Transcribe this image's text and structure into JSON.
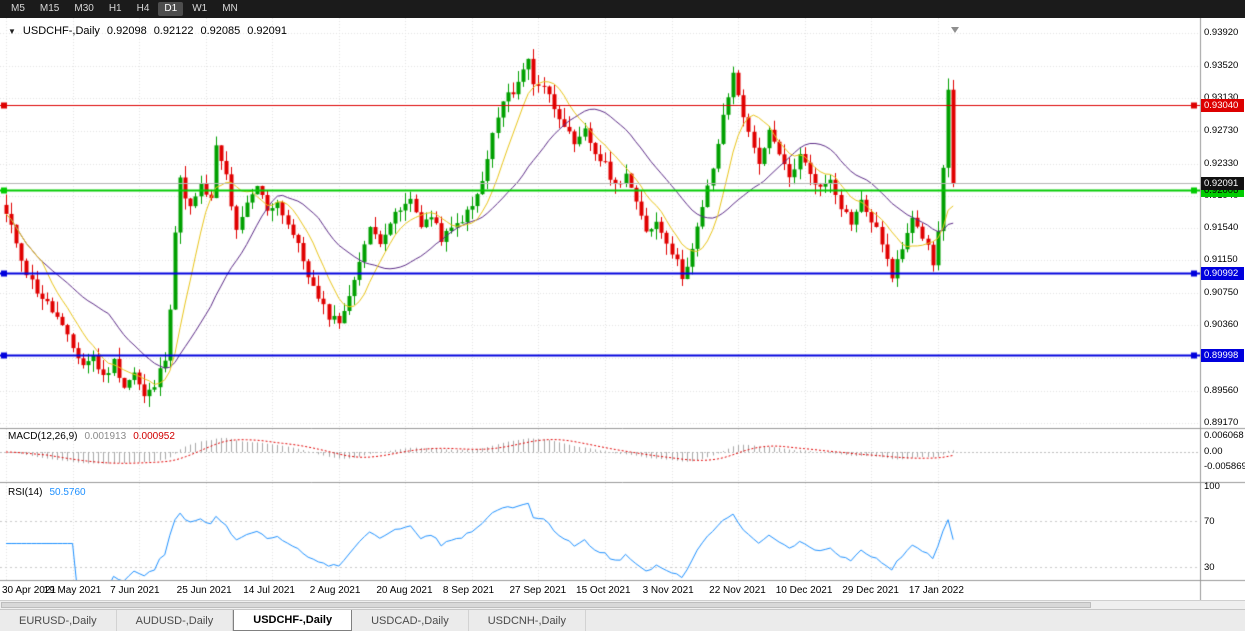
{
  "toolbar": {
    "timeframes": [
      "M5",
      "M15",
      "M30",
      "H1",
      "H4",
      "D1",
      "W1",
      "MN"
    ],
    "active": "D1"
  },
  "header": {
    "collapse_icon": "▼",
    "symbol_period": "USDCHF-,Daily",
    "open": "0.92098",
    "high": "0.92122",
    "low": "0.92085",
    "close": "0.92091"
  },
  "price_axis": {
    "ticks": [
      "0.93920",
      "0.93520",
      "0.93130",
      "0.92730",
      "0.92330",
      "0.91940",
      "0.91540",
      "0.91150",
      "0.90750",
      "0.90360",
      "0.89960",
      "0.89560",
      "0.89170"
    ]
  },
  "levels": [
    {
      "name": "resistance",
      "value": 0.9304,
      "label": "0.93040",
      "color": "#dd0000",
      "text_color": "#ffffff",
      "line_width": 1
    },
    {
      "name": "pivot",
      "value": 0.92006,
      "label": "0.92006",
      "color": "#00cc00",
      "text_color": "#000000",
      "line_width": 2
    },
    {
      "name": "support-1",
      "value": 0.90992,
      "label": "0.90992",
      "color": "#0000dd",
      "text_color": "#ffffff",
      "line_width": 2
    },
    {
      "name": "support-2",
      "value": 0.89998,
      "label": "0.89998",
      "color": "#0000dd",
      "text_color": "#ffffff",
      "line_width": 2
    }
  ],
  "current_price": {
    "value": 0.92091,
    "label": "0.92091",
    "badge_color": "#111111",
    "text_color": "#ffffff"
  },
  "macd": {
    "label": "MACD(12,26,9)",
    "main_value": "0.001913",
    "signal_value": "0.000952",
    "axis_ticks": [
      {
        "v": 0.006068,
        "label": "0.006068"
      },
      {
        "v": 0,
        "label": "0.00"
      },
      {
        "v": -0.005869,
        "label": "-0.005869"
      }
    ]
  },
  "rsi": {
    "label": "RSI(14)",
    "value": "50.5760",
    "axis_ticks": [
      {
        "v": 100,
        "label": "100"
      },
      {
        "v": 70,
        "label": "70"
      },
      {
        "v": 30,
        "label": "30"
      }
    ],
    "levels": [
      70,
      30
    ]
  },
  "date_axis": {
    "labels": [
      "30 Apr 2021",
      "19 May 2021",
      "7 Jun 2021",
      "25 Jun 2021",
      "14 Jul 2021",
      "2 Aug 2021",
      "20 Aug 2021",
      "8 Sep 2021",
      "27 Sep 2021",
      "15 Oct 2021",
      "3 Nov 2021",
      "22 Nov 2021",
      "10 Dec 2021",
      "29 Dec 2021",
      "17 Jan 2022"
    ],
    "candles_per_label": 13
  },
  "tabs": {
    "items": [
      "EURUSD-,Daily",
      "AUDUSD-,Daily",
      "USDCHF-,Daily",
      "USDCAD-,Daily",
      "USDCNH-,Daily"
    ],
    "active_index": 2
  },
  "chart_data": {
    "type": "candlestick",
    "symbol": "USDCHF",
    "timeframe": "Daily",
    "candle_count": 186,
    "price_range": [
      0.8917,
      0.9392
    ],
    "close_anchors": [
      [
        0,
        0.917
      ],
      [
        2,
        0.9138
      ],
      [
        4,
        0.91
      ],
      [
        6,
        0.9078
      ],
      [
        8,
        0.9062
      ],
      [
        10,
        0.9045
      ],
      [
        12,
        0.902
      ],
      [
        13,
        0.9008
      ],
      [
        15,
        0.8988
      ],
      [
        17,
        0.8998
      ],
      [
        19,
        0.8972
      ],
      [
        21,
        0.8992
      ],
      [
        23,
        0.8962
      ],
      [
        25,
        0.8978
      ],
      [
        27,
        0.8948
      ],
      [
        29,
        0.8962
      ],
      [
        31,
        0.8998
      ],
      [
        32,
        0.906
      ],
      [
        33,
        0.915
      ],
      [
        34,
        0.9212
      ],
      [
        36,
        0.9178
      ],
      [
        38,
        0.9205
      ],
      [
        40,
        0.9188
      ],
      [
        41,
        0.9252
      ],
      [
        43,
        0.9218
      ],
      [
        45,
        0.9148
      ],
      [
        47,
        0.9182
      ],
      [
        49,
        0.9206
      ],
      [
        51,
        0.9178
      ],
      [
        53,
        0.9186
      ],
      [
        55,
        0.916
      ],
      [
        57,
        0.9132
      ],
      [
        59,
        0.9098
      ],
      [
        61,
        0.9066
      ],
      [
        63,
        0.9048
      ],
      [
        65,
        0.9042
      ],
      [
        67,
        0.9068
      ],
      [
        69,
        0.9118
      ],
      [
        71,
        0.9152
      ],
      [
        73,
        0.914
      ],
      [
        75,
        0.9162
      ],
      [
        77,
        0.9176
      ],
      [
        79,
        0.9188
      ],
      [
        81,
        0.916
      ],
      [
        83,
        0.9168
      ],
      [
        85,
        0.9142
      ],
      [
        87,
        0.9152
      ],
      [
        89,
        0.9166
      ],
      [
        91,
        0.918
      ],
      [
        93,
        0.921
      ],
      [
        95,
        0.9268
      ],
      [
        97,
        0.9308
      ],
      [
        99,
        0.9322
      ],
      [
        101,
        0.9346
      ],
      [
        102,
        0.936
      ],
      [
        103,
        0.9332
      ],
      [
        105,
        0.9328
      ],
      [
        107,
        0.9302
      ],
      [
        109,
        0.9282
      ],
      [
        111,
        0.9252
      ],
      [
        113,
        0.9272
      ],
      [
        115,
        0.9246
      ],
      [
        117,
        0.923
      ],
      [
        119,
        0.9206
      ],
      [
        121,
        0.9222
      ],
      [
        123,
        0.9182
      ],
      [
        125,
        0.9152
      ],
      [
        127,
        0.9162
      ],
      [
        129,
        0.914
      ],
      [
        131,
        0.9112
      ],
      [
        132,
        0.9096
      ],
      [
        134,
        0.9128
      ],
      [
        136,
        0.9178
      ],
      [
        138,
        0.9228
      ],
      [
        140,
        0.9288
      ],
      [
        142,
        0.9342
      ],
      [
        143,
        0.9318
      ],
      [
        145,
        0.9268
      ],
      [
        147,
        0.9236
      ],
      [
        149,
        0.927
      ],
      [
        151,
        0.9242
      ],
      [
        153,
        0.9216
      ],
      [
        155,
        0.9242
      ],
      [
        157,
        0.9222
      ],
      [
        159,
        0.9202
      ],
      [
        161,
        0.9216
      ],
      [
        163,
        0.9182
      ],
      [
        165,
        0.9162
      ],
      [
        167,
        0.9186
      ],
      [
        169,
        0.9164
      ],
      [
        171,
        0.9138
      ],
      [
        173,
        0.9092
      ],
      [
        175,
        0.9132
      ],
      [
        177,
        0.9172
      ],
      [
        179,
        0.9146
      ],
      [
        181,
        0.9112
      ],
      [
        182,
        0.9148
      ],
      [
        183,
        0.9232
      ],
      [
        184,
        0.9322
      ],
      [
        185,
        0.92091
      ]
    ],
    "ma_fast": {
      "period": 8,
      "color": "#e8c41a"
    },
    "ma_slow": {
      "period": 21,
      "color": "#5b2a86"
    },
    "macd_params": [
      12,
      26,
      9
    ],
    "rsi_period": 14,
    "colors": {
      "bull": "#00a000",
      "bear": "#e00000",
      "grid": "#e3e3e3",
      "rsi_line": "#1E90FF",
      "macd_hist": "#a8a8a8",
      "macd_signal": "#e00000",
      "current_price_line": "#b4b4b4",
      "separator": "#989898"
    }
  }
}
